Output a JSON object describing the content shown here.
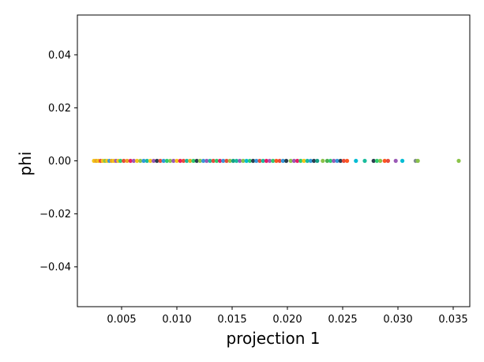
{
  "chart_data": {
    "type": "scatter",
    "title": "",
    "xlabel": "projection 1",
    "ylabel": "phi",
    "xlim": [
      0.001,
      0.0365
    ],
    "ylim": [
      -0.055,
      0.055
    ],
    "x_ticks": [
      0.005,
      0.01,
      0.015,
      0.02,
      0.025,
      0.03,
      0.035
    ],
    "x_tick_labels": [
      "0.005",
      "0.010",
      "0.015",
      "0.020",
      "0.025",
      "0.030",
      "0.035"
    ],
    "y_ticks": [
      0.04,
      0.02,
      0.0,
      -0.02,
      -0.04
    ],
    "y_tick_labels": [
      "0.04",
      "0.02",
      "0.00",
      "−0.02",
      "−0.04"
    ],
    "grid": false,
    "legend": "none",
    "colors": [
      "#f5c518",
      "#e8a623",
      "#9b59b6",
      "#e74c3c",
      "#2ecc71",
      "#3498db",
      "#1abc9c",
      "#8bc34a",
      "#e91e63",
      "#2c3e50",
      "#16a085",
      "#7f8c8d",
      "#00bcd4",
      "#ff5722",
      "#4caf50",
      "#673ab7"
    ],
    "points": [
      {
        "x": 0.0025,
        "y": 0.0,
        "c": 0
      },
      {
        "x": 0.0027,
        "y": 0.0,
        "c": 1
      },
      {
        "x": 0.0029,
        "y": 0.0,
        "c": 0
      },
      {
        "x": 0.0031,
        "y": 0.0,
        "c": 3
      },
      {
        "x": 0.0033,
        "y": 0.0,
        "c": 0
      },
      {
        "x": 0.0035,
        "y": 0.0,
        "c": 7
      },
      {
        "x": 0.0037,
        "y": 0.0,
        "c": 0
      },
      {
        "x": 0.0039,
        "y": 0.0,
        "c": 5
      },
      {
        "x": 0.0041,
        "y": 0.0,
        "c": 1
      },
      {
        "x": 0.0043,
        "y": 0.0,
        "c": 0
      },
      {
        "x": 0.0045,
        "y": 0.0,
        "c": 2
      },
      {
        "x": 0.0047,
        "y": 0.0,
        "c": 0
      },
      {
        "x": 0.0049,
        "y": 0.0,
        "c": 4
      },
      {
        "x": 0.0052,
        "y": 0.0,
        "c": 3
      },
      {
        "x": 0.0055,
        "y": 0.0,
        "c": 1
      },
      {
        "x": 0.0058,
        "y": 0.0,
        "c": 8
      },
      {
        "x": 0.0061,
        "y": 0.0,
        "c": 2
      },
      {
        "x": 0.0064,
        "y": 0.0,
        "c": 0
      },
      {
        "x": 0.0067,
        "y": 0.0,
        "c": 7
      },
      {
        "x": 0.007,
        "y": 0.0,
        "c": 5
      },
      {
        "x": 0.0073,
        "y": 0.0,
        "c": 6
      },
      {
        "x": 0.0076,
        "y": 0.0,
        "c": 0
      },
      {
        "x": 0.0079,
        "y": 0.0,
        "c": 2
      },
      {
        "x": 0.0082,
        "y": 0.0,
        "c": 9
      },
      {
        "x": 0.0085,
        "y": 0.0,
        "c": 3
      },
      {
        "x": 0.0088,
        "y": 0.0,
        "c": 5
      },
      {
        "x": 0.0091,
        "y": 0.0,
        "c": 4
      },
      {
        "x": 0.0094,
        "y": 0.0,
        "c": 7
      },
      {
        "x": 0.0097,
        "y": 0.0,
        "c": 2
      },
      {
        "x": 0.01,
        "y": 0.0,
        "c": 0
      },
      {
        "x": 0.0103,
        "y": 0.0,
        "c": 8
      },
      {
        "x": 0.0106,
        "y": 0.0,
        "c": 3
      },
      {
        "x": 0.0109,
        "y": 0.0,
        "c": 6
      },
      {
        "x": 0.0112,
        "y": 0.0,
        "c": 1
      },
      {
        "x": 0.0115,
        "y": 0.0,
        "c": 4
      },
      {
        "x": 0.0118,
        "y": 0.0,
        "c": 9
      },
      {
        "x": 0.0121,
        "y": 0.0,
        "c": 7
      },
      {
        "x": 0.0124,
        "y": 0.0,
        "c": 5
      },
      {
        "x": 0.0127,
        "y": 0.0,
        "c": 2
      },
      {
        "x": 0.013,
        "y": 0.0,
        "c": 6
      },
      {
        "x": 0.0133,
        "y": 0.0,
        "c": 3
      },
      {
        "x": 0.0136,
        "y": 0.0,
        "c": 4
      },
      {
        "x": 0.0139,
        "y": 0.0,
        "c": 8
      },
      {
        "x": 0.0142,
        "y": 0.0,
        "c": 5
      },
      {
        "x": 0.0145,
        "y": 0.0,
        "c": 3
      },
      {
        "x": 0.0148,
        "y": 0.0,
        "c": 7
      },
      {
        "x": 0.0151,
        "y": 0.0,
        "c": 10
      },
      {
        "x": 0.0154,
        "y": 0.0,
        "c": 6
      },
      {
        "x": 0.0157,
        "y": 0.0,
        "c": 2
      },
      {
        "x": 0.016,
        "y": 0.0,
        "c": 7
      },
      {
        "x": 0.0163,
        "y": 0.0,
        "c": 12
      },
      {
        "x": 0.0166,
        "y": 0.0,
        "c": 4
      },
      {
        "x": 0.0169,
        "y": 0.0,
        "c": 9
      },
      {
        "x": 0.0172,
        "y": 0.0,
        "c": 5
      },
      {
        "x": 0.0175,
        "y": 0.0,
        "c": 3
      },
      {
        "x": 0.0178,
        "y": 0.0,
        "c": 6
      },
      {
        "x": 0.0181,
        "y": 0.0,
        "c": 8
      },
      {
        "x": 0.0184,
        "y": 0.0,
        "c": 2
      },
      {
        "x": 0.0187,
        "y": 0.0,
        "c": 4
      },
      {
        "x": 0.019,
        "y": 0.0,
        "c": 13
      },
      {
        "x": 0.0193,
        "y": 0.0,
        "c": 3
      },
      {
        "x": 0.0196,
        "y": 0.0,
        "c": 5
      },
      {
        "x": 0.0199,
        "y": 0.0,
        "c": 9
      },
      {
        "x": 0.0203,
        "y": 0.0,
        "c": 7
      },
      {
        "x": 0.0206,
        "y": 0.0,
        "c": 2
      },
      {
        "x": 0.0209,
        "y": 0.0,
        "c": 8
      },
      {
        "x": 0.0212,
        "y": 0.0,
        "c": 4
      },
      {
        "x": 0.0215,
        "y": 0.0,
        "c": 0
      },
      {
        "x": 0.0218,
        "y": 0.0,
        "c": 6
      },
      {
        "x": 0.0221,
        "y": 0.0,
        "c": 5
      },
      {
        "x": 0.0224,
        "y": 0.0,
        "c": 9
      },
      {
        "x": 0.0227,
        "y": 0.0,
        "c": 10
      },
      {
        "x": 0.0232,
        "y": 0.0,
        "c": 7
      },
      {
        "x": 0.0236,
        "y": 0.0,
        "c": 14
      },
      {
        "x": 0.0239,
        "y": 0.0,
        "c": 4
      },
      {
        "x": 0.0242,
        "y": 0.0,
        "c": 2
      },
      {
        "x": 0.0245,
        "y": 0.0,
        "c": 5
      },
      {
        "x": 0.0248,
        "y": 0.0,
        "c": 9
      },
      {
        "x": 0.0251,
        "y": 0.0,
        "c": 3
      },
      {
        "x": 0.0254,
        "y": 0.0,
        "c": 13
      },
      {
        "x": 0.0262,
        "y": 0.0,
        "c": 12
      },
      {
        "x": 0.027,
        "y": 0.0,
        "c": 6
      },
      {
        "x": 0.0278,
        "y": 0.0,
        "c": 9
      },
      {
        "x": 0.0281,
        "y": 0.0,
        "c": 4
      },
      {
        "x": 0.0284,
        "y": 0.0,
        "c": 7
      },
      {
        "x": 0.0288,
        "y": 0.0,
        "c": 13
      },
      {
        "x": 0.0291,
        "y": 0.0,
        "c": 3
      },
      {
        "x": 0.0298,
        "y": 0.0,
        "c": 2
      },
      {
        "x": 0.0304,
        "y": 0.0,
        "c": 12
      },
      {
        "x": 0.0316,
        "y": 0.0,
        "c": 11
      },
      {
        "x": 0.0318,
        "y": 0.0,
        "c": 7
      },
      {
        "x": 0.0355,
        "y": 0.0,
        "c": 7
      }
    ]
  }
}
